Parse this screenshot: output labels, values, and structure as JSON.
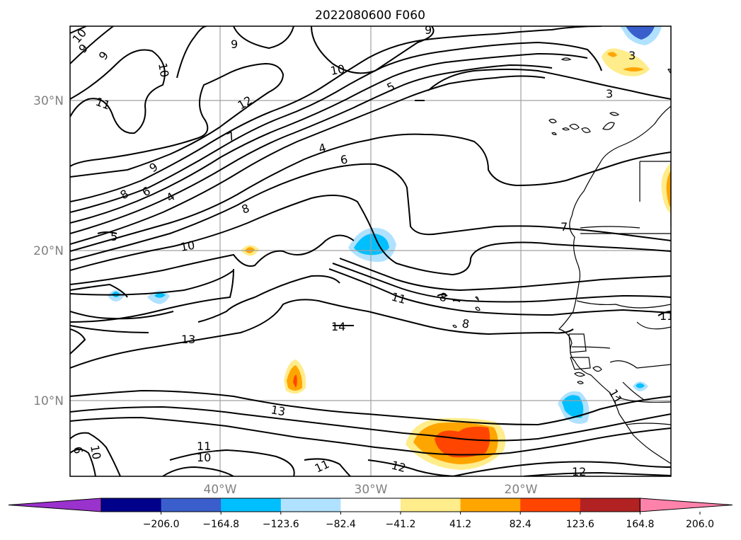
{
  "title": "2022080600 F060",
  "axes": {
    "lat_labels": [
      "30°N",
      "20°N",
      "10°N"
    ],
    "lon_labels": [
      "40°W",
      "30°W",
      "20°W"
    ]
  },
  "colorbar": {
    "ticks": [
      "−206.0",
      "−164.8",
      "−123.6",
      "−82.4",
      "−41.2",
      "41.2",
      "82.4",
      "123.6",
      "164.8",
      "206.0"
    ],
    "colors": [
      "#9a32cd",
      "#00008b",
      "#3a5fcd",
      "#00bfff",
      "#b0e2ff",
      "#ffffff",
      "#ffec8b",
      "#ffa500",
      "#ff4500",
      "#b22222",
      "#ff82ab"
    ]
  },
  "contour_labels": [
    "10",
    "9",
    "9",
    "9",
    "10",
    "11",
    "12",
    "10",
    "5",
    "3",
    "3",
    "9",
    "8",
    "6",
    "4",
    "7",
    "4",
    "6",
    "9",
    "8",
    "5",
    "10",
    "7",
    "11",
    "8",
    "8",
    "14",
    "13",
    "11",
    "13",
    "6",
    "10",
    "11",
    "10",
    "11",
    "12",
    "12",
    "11"
  ]
}
